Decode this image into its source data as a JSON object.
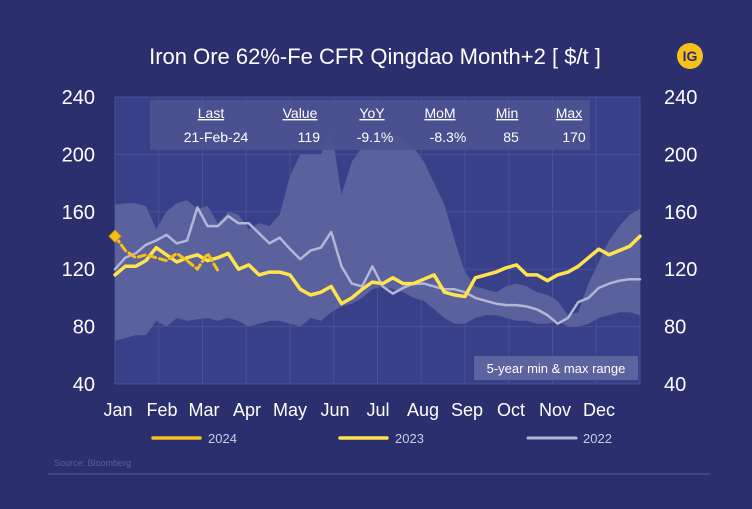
{
  "title": "Iron Ore 62%-Fe CFR Qingdao Month+2 [ $/t ]",
  "logo_text": "IG",
  "source": "Source: Bloomberg",
  "range_label": "5-year min & max range",
  "colors": {
    "background": "#2b2f6e",
    "plot_background": "#38408a",
    "band": "#5c639e",
    "series_2024": "#f5c11a",
    "series_2023": "#ffe34d",
    "series_2022": "#b3b6d6",
    "logo": "#f5c11a"
  },
  "stats": {
    "headers": [
      "Last",
      "Value",
      "YoY",
      "MoM",
      "Min",
      "Max"
    ],
    "values": [
      "21-Feb-24",
      "119",
      "-9.1%",
      "-8.3%",
      "85",
      "170"
    ]
  },
  "chart_data": {
    "type": "line",
    "ylim": [
      40,
      240
    ],
    "yticks": [
      40,
      80,
      120,
      160,
      200,
      240
    ],
    "xlim": [
      1,
      52
    ],
    "x_unit": "week",
    "month_labels": [
      "Jan",
      "Feb",
      "Mar",
      "Apr",
      "May",
      "Jun",
      "Jul",
      "Aug",
      "Sep",
      "Oct",
      "Nov",
      "Dec"
    ],
    "grid": true,
    "legend_position": "bottom",
    "band": {
      "x": [
        1,
        2,
        3,
        4,
        5,
        6,
        7,
        8,
        9,
        10,
        11,
        12,
        13,
        14,
        15,
        16,
        17,
        18,
        19,
        20,
        21,
        22,
        23,
        24,
        25,
        26,
        27,
        28,
        29,
        30,
        31,
        32,
        33,
        34,
        35,
        36,
        37,
        38,
        39,
        40,
        41,
        42,
        43,
        44,
        45,
        46,
        47,
        48,
        49,
        50,
        51,
        52
      ],
      "upper": [
        165,
        166,
        166,
        164,
        148,
        160,
        166,
        168,
        162,
        164,
        152,
        160,
        158,
        148,
        152,
        150,
        158,
        185,
        200,
        200,
        200,
        218,
        172,
        195,
        205,
        206,
        210,
        215,
        210,
        205,
        195,
        180,
        165,
        140,
        118,
        108,
        106,
        104,
        108,
        110,
        108,
        104,
        102,
        98,
        88,
        90,
        110,
        125,
        140,
        150,
        158,
        162
      ],
      "lower": [
        70,
        72,
        74,
        74,
        84,
        80,
        86,
        84,
        85,
        86,
        84,
        86,
        84,
        80,
        82,
        84,
        84,
        82,
        80,
        86,
        84,
        90,
        94,
        96,
        100,
        106,
        108,
        106,
        104,
        100,
        98,
        92,
        86,
        82,
        82,
        86,
        88,
        88,
        86,
        84,
        84,
        82,
        82,
        84,
        80,
        80,
        82,
        86,
        88,
        90,
        90,
        88
      ]
    },
    "series": [
      {
        "name": "2024",
        "x": [
          1,
          2,
          3,
          4,
          5,
          6,
          7,
          8,
          9,
          10,
          11
        ],
        "values": [
          143,
          133,
          128,
          130,
          128,
          126,
          131,
          126,
          120,
          131,
          119
        ]
      },
      {
        "name": "2023",
        "x": [
          1,
          2,
          3,
          4,
          5,
          6,
          7,
          8,
          9,
          10,
          11,
          12,
          13,
          14,
          15,
          16,
          17,
          18,
          19,
          20,
          21,
          22,
          23,
          24,
          25,
          26,
          27,
          28,
          29,
          30,
          31,
          32,
          33,
          34,
          35,
          36,
          37,
          38,
          39,
          40,
          41,
          42,
          43,
          44,
          45,
          46,
          47,
          48,
          49,
          50,
          51,
          52
        ],
        "values": [
          116,
          122,
          122,
          126,
          135,
          130,
          125,
          128,
          130,
          126,
          128,
          131,
          120,
          123,
          116,
          118,
          118,
          116,
          106,
          102,
          104,
          108,
          96,
          100,
          106,
          111,
          110,
          114,
          110,
          110,
          113,
          116,
          104,
          102,
          101,
          114,
          116,
          118,
          121,
          123,
          116,
          116,
          112,
          116,
          118,
          122,
          128,
          134,
          130,
          133,
          136,
          143
        ]
      },
      {
        "name": "2022",
        "x": [
          1,
          2,
          3,
          4,
          5,
          6,
          7,
          8,
          9,
          10,
          11,
          12,
          13,
          14,
          15,
          16,
          17,
          18,
          19,
          20,
          21,
          22,
          23,
          24,
          25,
          26,
          27,
          28,
          29,
          30,
          31,
          32,
          33,
          34,
          35,
          36,
          37,
          38,
          39,
          40,
          41,
          42,
          43,
          44,
          45,
          46,
          47,
          48,
          49,
          50,
          51,
          52
        ],
        "values": [
          120,
          128,
          131,
          137,
          140,
          144,
          138,
          140,
          163,
          150,
          150,
          157,
          152,
          152,
          145,
          138,
          142,
          134,
          127,
          133,
          135,
          146,
          122,
          110,
          108,
          122,
          108,
          103,
          107,
          110,
          110,
          108,
          106,
          106,
          104,
          100,
          98,
          96,
          95,
          95,
          94,
          92,
          88,
          82,
          86,
          97,
          100,
          107,
          110,
          112,
          113,
          113
        ]
      }
    ]
  }
}
